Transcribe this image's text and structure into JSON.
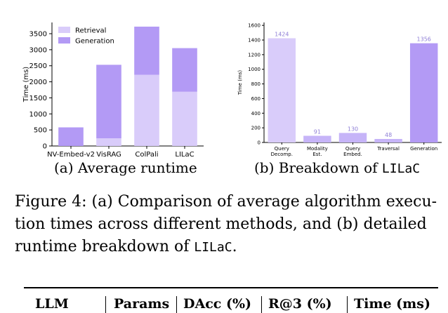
{
  "chart_data": [
    {
      "type": "bar",
      "stacked": true,
      "categories": [
        "NV-Embed-v2",
        "VisRAG",
        "ColPali",
        "LILaC"
      ],
      "series": [
        {
          "name": "Retrieval",
          "values": [
            0,
            240,
            2220,
            1690
          ],
          "color": "#d9ccfa"
        },
        {
          "name": "Generation",
          "values": [
            580,
            2290,
            1500,
            1360
          ],
          "color": "#b39af5"
        }
      ],
      "ylabel": "Time (ms)",
      "yticks": [
        0,
        500,
        1000,
        1500,
        2000,
        2500,
        3000,
        3500
      ],
      "ylim": [
        0,
        3850
      ],
      "legend": "top-left",
      "grid": false
    },
    {
      "type": "bar",
      "categories": [
        "Query\nDecomp.",
        "Modality\nEst.",
        "Query\nEmbed.",
        "Traversal",
        "Generation"
      ],
      "values": [
        1424,
        91,
        130,
        48,
        1356
      ],
      "data_labels": [
        "1424",
        "91",
        "130",
        "48",
        "1356"
      ],
      "colors": [
        "#d9ccfa",
        "#c6b4f8",
        "#c6b4f8",
        "#c6b4f8",
        "#b39af5"
      ],
      "label_color": "#8f7fd6",
      "ylabel": "Time (ms)",
      "yticks": [
        0,
        200,
        400,
        600,
        800,
        1000,
        1200,
        1400,
        1600
      ],
      "ylim": [
        0,
        1640
      ],
      "grid": false
    }
  ],
  "subcaptions": {
    "a": "(a) Average runtime",
    "b_prefix": "(b) Breakdown of ",
    "b_code": "LILaC"
  },
  "caption": {
    "line1": "Figure 4: (a) Comparison of average algorithm execu-",
    "line2": "tion times across different methods, and (b) detailed",
    "line3_prefix": "runtime breakdown of ",
    "line3_code": "LILaC",
    "line3_suffix": "."
  },
  "table_header": [
    "LLM",
    "Params",
    "DAcc (%)",
    "R@3 (%)",
    "Time (ms)"
  ]
}
